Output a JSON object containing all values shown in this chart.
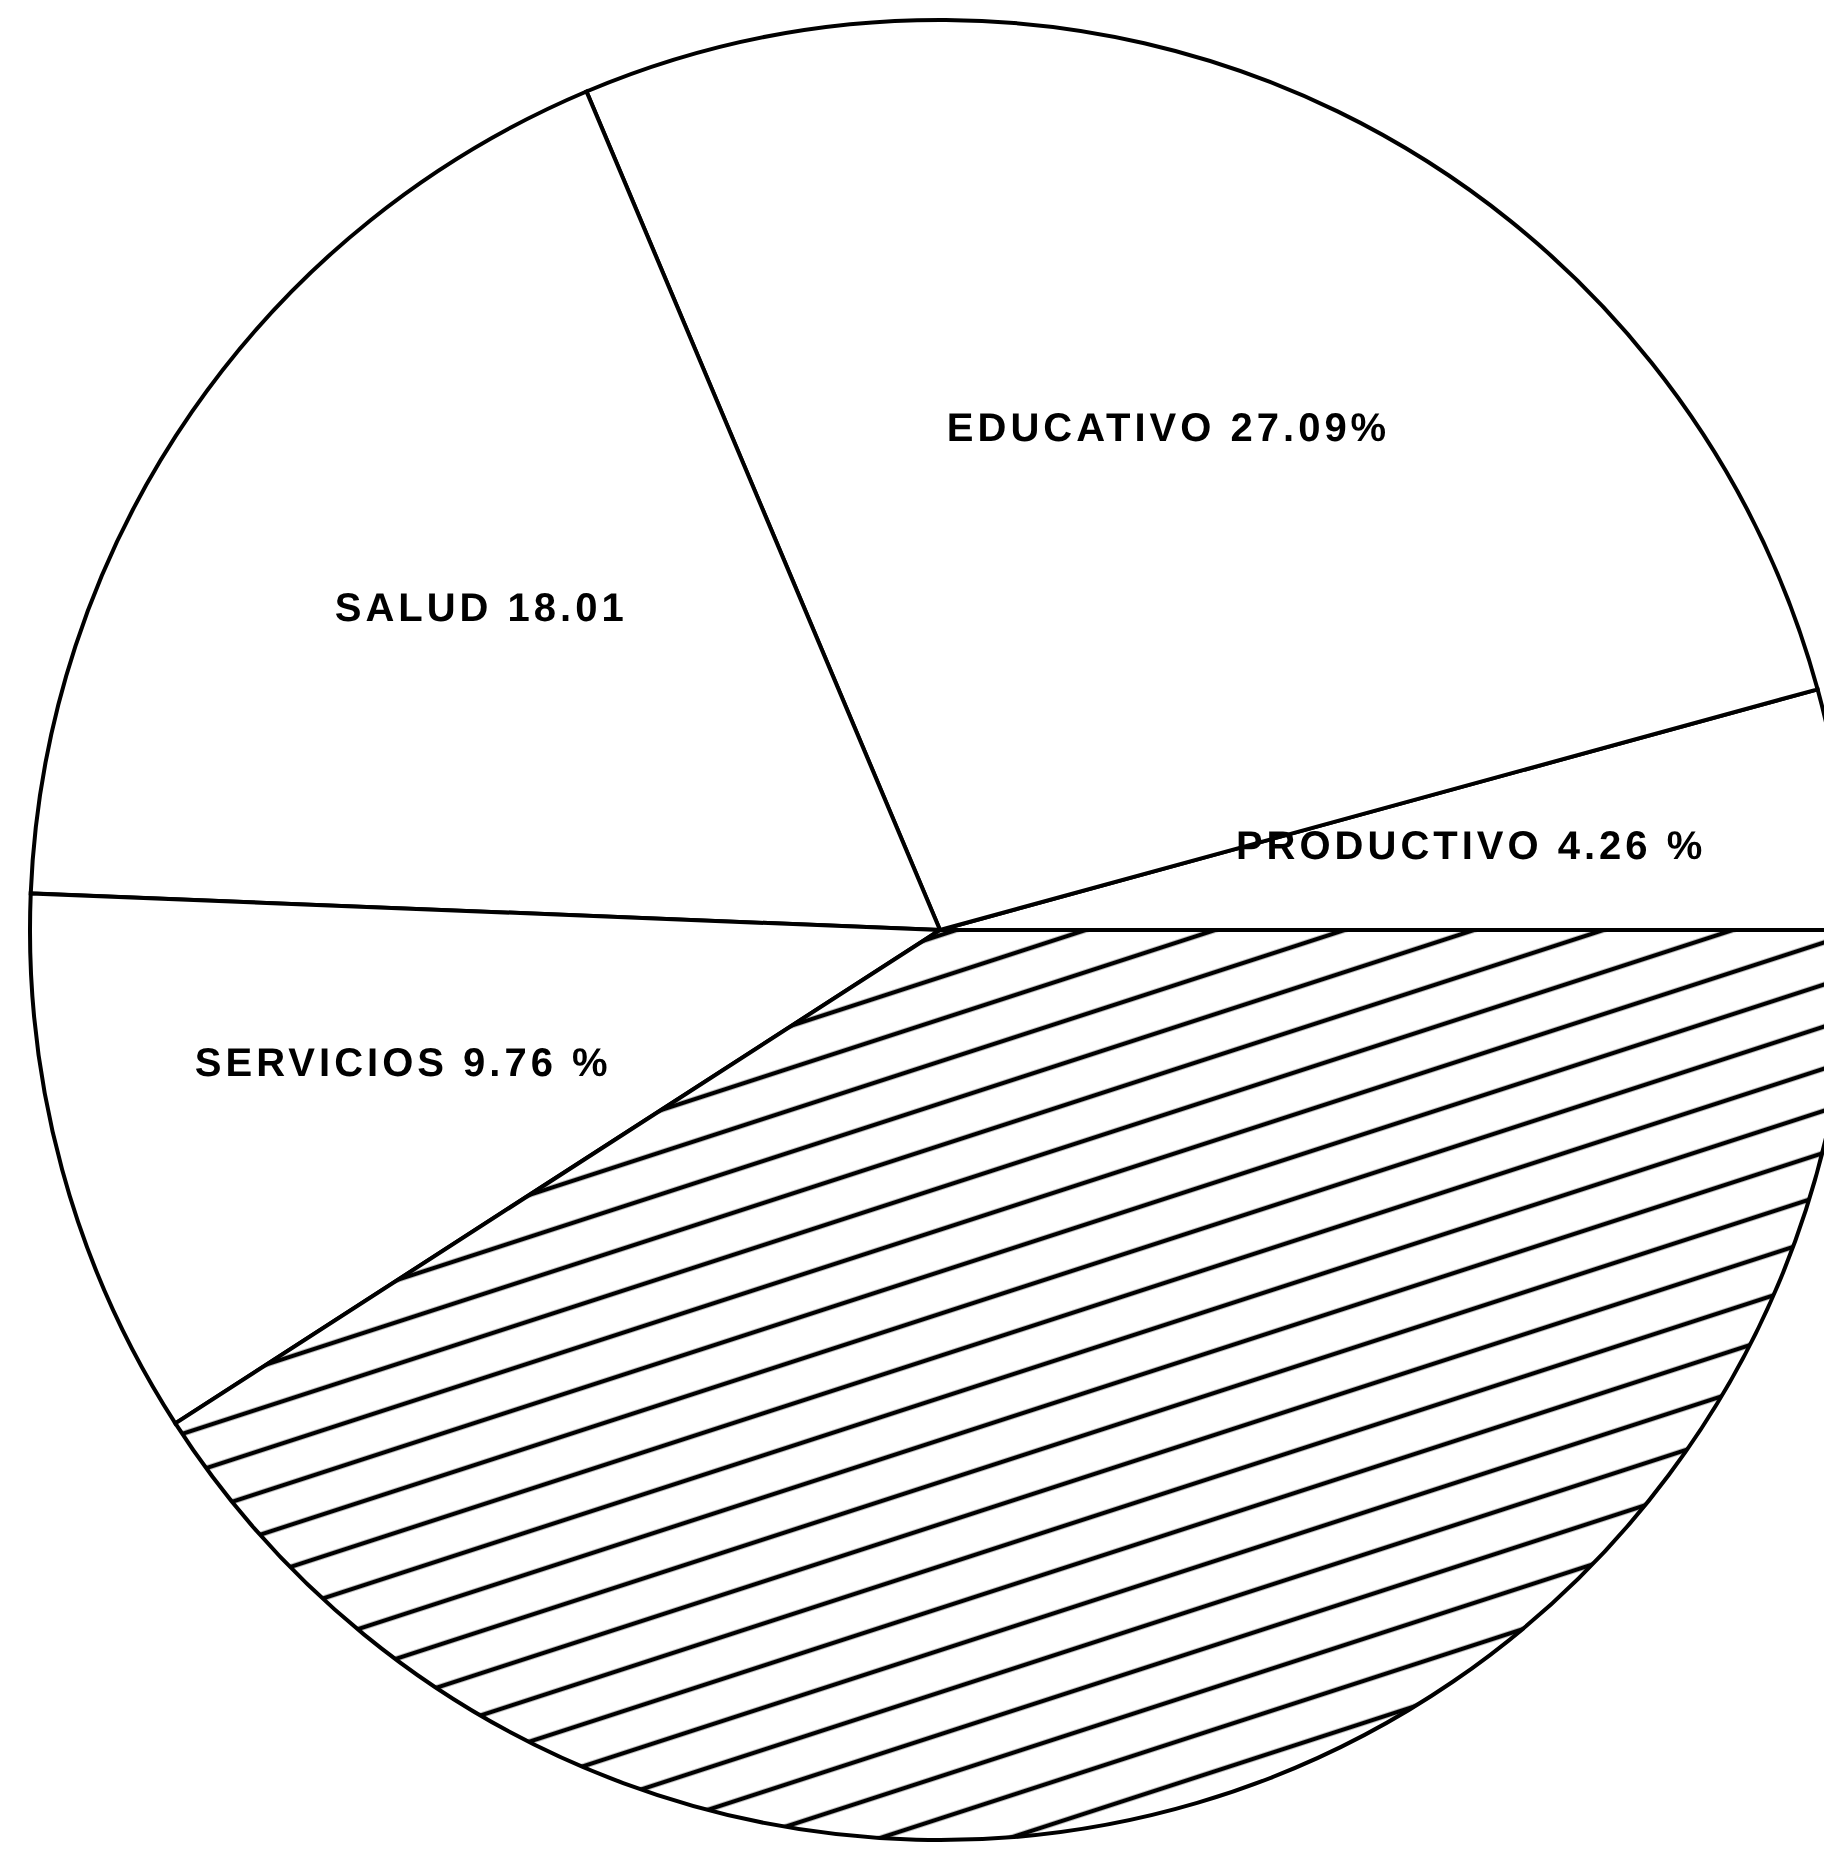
{
  "chart_data": {
    "type": "pie",
    "categories": [
      "PRODUCTIVO",
      "EDUCATIVO",
      "SALUD",
      "SERVICIOS",
      null
    ],
    "values": [
      4.26,
      27.09,
      18.01,
      9.76,
      40.88
    ],
    "value_labels": [
      "4.26 %",
      "27.09%",
      "18.01",
      "9.76 %",
      null
    ],
    "colors": [
      "#ffffff",
      "#ffffff",
      "#ffffff",
      "#ffffff",
      "#000000"
    ]
  }
}
